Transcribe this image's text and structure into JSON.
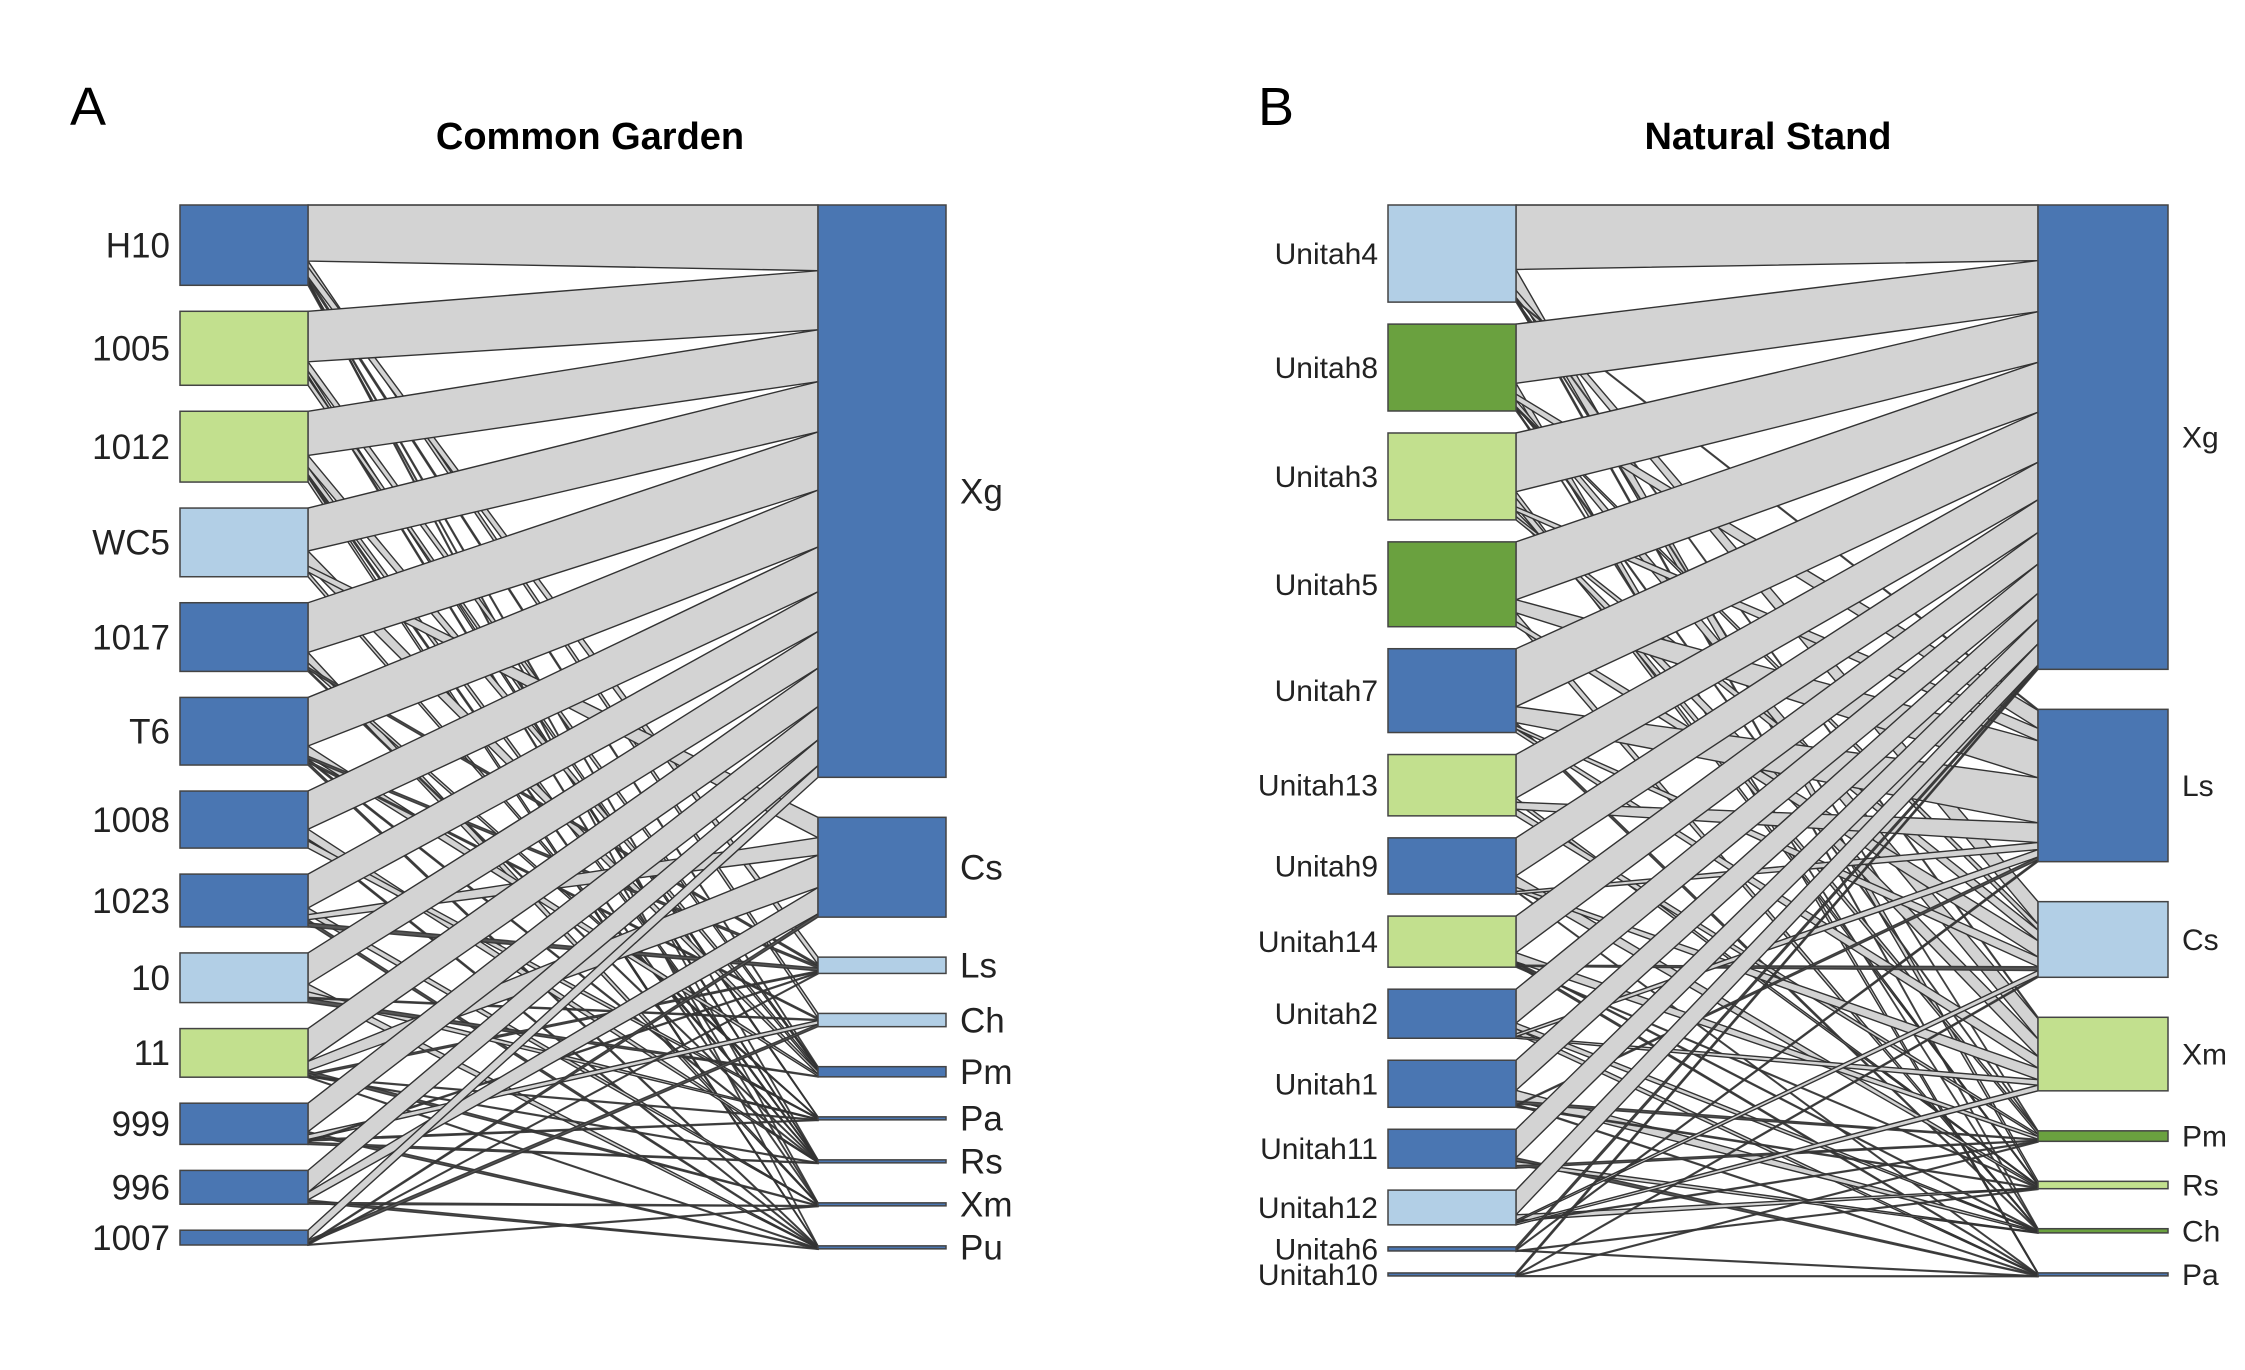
{
  "colors": {
    "dark_blue": "#4a76b2",
    "light_blue": "#b2cfe6",
    "light_green": "#c2e08e",
    "dark_green": "#6aa13f",
    "band_fill": "#d3d3d3",
    "band_stroke": "#333333"
  },
  "chart_data": [
    {
      "type": "bipartite",
      "panel_letter": "A",
      "title": "Common Garden",
      "left_nodes": [
        {
          "label": "H10",
          "size": 0.76,
          "color": "dark_blue"
        },
        {
          "label": "1005",
          "size": 0.7,
          "color": "light_green"
        },
        {
          "label": "1012",
          "size": 0.67,
          "color": "light_green"
        },
        {
          "label": "WC5",
          "size": 0.65,
          "color": "light_blue"
        },
        {
          "label": "1017",
          "size": 0.65,
          "color": "dark_blue"
        },
        {
          "label": "T6",
          "size": 0.64,
          "color": "dark_blue"
        },
        {
          "label": "1008",
          "size": 0.54,
          "color": "dark_blue"
        },
        {
          "label": "1023",
          "size": 0.5,
          "color": "dark_blue"
        },
        {
          "label": "10",
          "size": 0.47,
          "color": "light_blue"
        },
        {
          "label": "11",
          "size": 0.46,
          "color": "light_green"
        },
        {
          "label": "999",
          "size": 0.39,
          "color": "dark_blue"
        },
        {
          "label": "996",
          "size": 0.32,
          "color": "dark_blue"
        },
        {
          "label": "1007",
          "size": 0.14,
          "color": "dark_blue"
        }
      ],
      "right_nodes": [
        {
          "label": "Xg",
          "size": 5.62,
          "color": "dark_blue"
        },
        {
          "label": "Cs",
          "size": 0.98,
          "color": "dark_blue"
        },
        {
          "label": "Ls",
          "size": 0.16,
          "color": "light_blue"
        },
        {
          "label": "Ch",
          "size": 0.13,
          "color": "light_blue"
        },
        {
          "label": "Pm",
          "size": 0.1,
          "color": "dark_blue"
        },
        {
          "label": "Pa",
          "size": 0.02,
          "color": "dark_blue"
        },
        {
          "label": "Rs",
          "size": 0.02,
          "color": "dark_blue"
        },
        {
          "label": "Xm",
          "size": 0.02,
          "color": "dark_blue"
        },
        {
          "label": "Pu",
          "size": 0.02,
          "color": "dark_blue"
        }
      ]
    },
    {
      "type": "bipartite",
      "panel_letter": "B",
      "title": "Natural Stand",
      "left_nodes": [
        {
          "label": "Unitah4",
          "size": 0.95,
          "color": "light_blue"
        },
        {
          "label": "Unitah8",
          "size": 0.85,
          "color": "dark_green"
        },
        {
          "label": "Unitah3",
          "size": 0.85,
          "color": "light_green"
        },
        {
          "label": "Unitah5",
          "size": 0.83,
          "color": "dark_green"
        },
        {
          "label": "Unitah7",
          "size": 0.82,
          "color": "dark_blue"
        },
        {
          "label": "Unitah13",
          "size": 0.6,
          "color": "light_green"
        },
        {
          "label": "Unitah9",
          "size": 0.55,
          "color": "dark_blue"
        },
        {
          "label": "Unitah14",
          "size": 0.5,
          "color": "light_green"
        },
        {
          "label": "Unitah2",
          "size": 0.48,
          "color": "dark_blue"
        },
        {
          "label": "Unitah1",
          "size": 0.46,
          "color": "dark_blue"
        },
        {
          "label": "Unitah11",
          "size": 0.38,
          "color": "dark_blue"
        },
        {
          "label": "Unitah12",
          "size": 0.34,
          "color": "light_blue"
        },
        {
          "label": "Unitah6",
          "size": 0.04,
          "color": "dark_blue"
        },
        {
          "label": "Unitah10",
          "size": 0.02,
          "color": "dark_blue"
        }
      ],
      "right_nodes": [
        {
          "label": "Xg",
          "size": 4.42,
          "color": "dark_blue"
        },
        {
          "label": "Ls",
          "size": 1.45,
          "color": "dark_blue"
        },
        {
          "label": "Cs",
          "size": 0.72,
          "color": "light_blue"
        },
        {
          "label": "Xm",
          "size": 0.7,
          "color": "light_green"
        },
        {
          "label": "Pm",
          "size": 0.1,
          "color": "dark_green"
        },
        {
          "label": "Rs",
          "size": 0.07,
          "color": "light_green"
        },
        {
          "label": "Ch",
          "size": 0.04,
          "color": "dark_green"
        },
        {
          "label": "Pa",
          "size": 0.02,
          "color": "dark_blue"
        }
      ]
    }
  ]
}
